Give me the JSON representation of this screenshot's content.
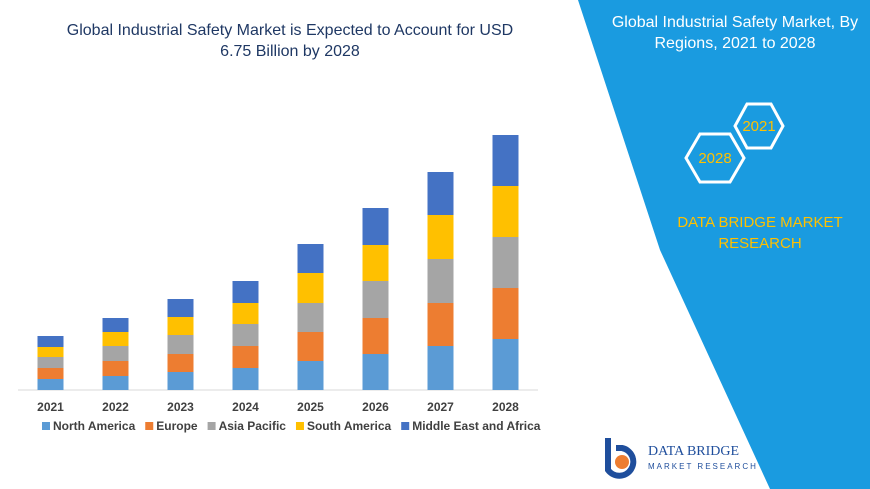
{
  "chart_data": {
    "type": "stacked-bar",
    "title": "Global Industrial Safety Market is Expected to Account for USD 6.75 Billion by 2028",
    "categories": [
      "2021",
      "2022",
      "2023",
      "2024",
      "2025",
      "2026",
      "2027",
      "2028"
    ],
    "series": [
      {
        "name": "North America",
        "color": "#5b9bd5",
        "values": [
          11,
          14,
          18,
          22,
          29,
          36,
          44,
          51
        ]
      },
      {
        "name": "Europe",
        "color": "#ed7d31",
        "values": [
          11,
          15,
          18,
          22,
          29,
          36,
          43,
          51
        ]
      },
      {
        "name": "Asia Pacific",
        "color": "#a5a5a5",
        "values": [
          11,
          15,
          19,
          22,
          29,
          37,
          44,
          51
        ]
      },
      {
        "name": "South America",
        "color": "#ffc000",
        "values": [
          10,
          14,
          18,
          21,
          30,
          36,
          44,
          51
        ]
      },
      {
        "name": "Middle East and Africa",
        "color": "#4472c4",
        "values": [
          11,
          14,
          18,
          22,
          29,
          37,
          43,
          51
        ]
      }
    ],
    "ylim": [
      0,
      260
    ],
    "legend": "bottom"
  },
  "panel": {
    "title": "Global Industrial Safety Market, By Regions, 2021 to 2028",
    "hex_labels": [
      "2021",
      "2028"
    ],
    "brand": "DATA BRIDGE MARKET RESEARCH",
    "logo": {
      "name": "DATA BRIDGE",
      "tagline": "MARKET RESEARCH"
    }
  }
}
